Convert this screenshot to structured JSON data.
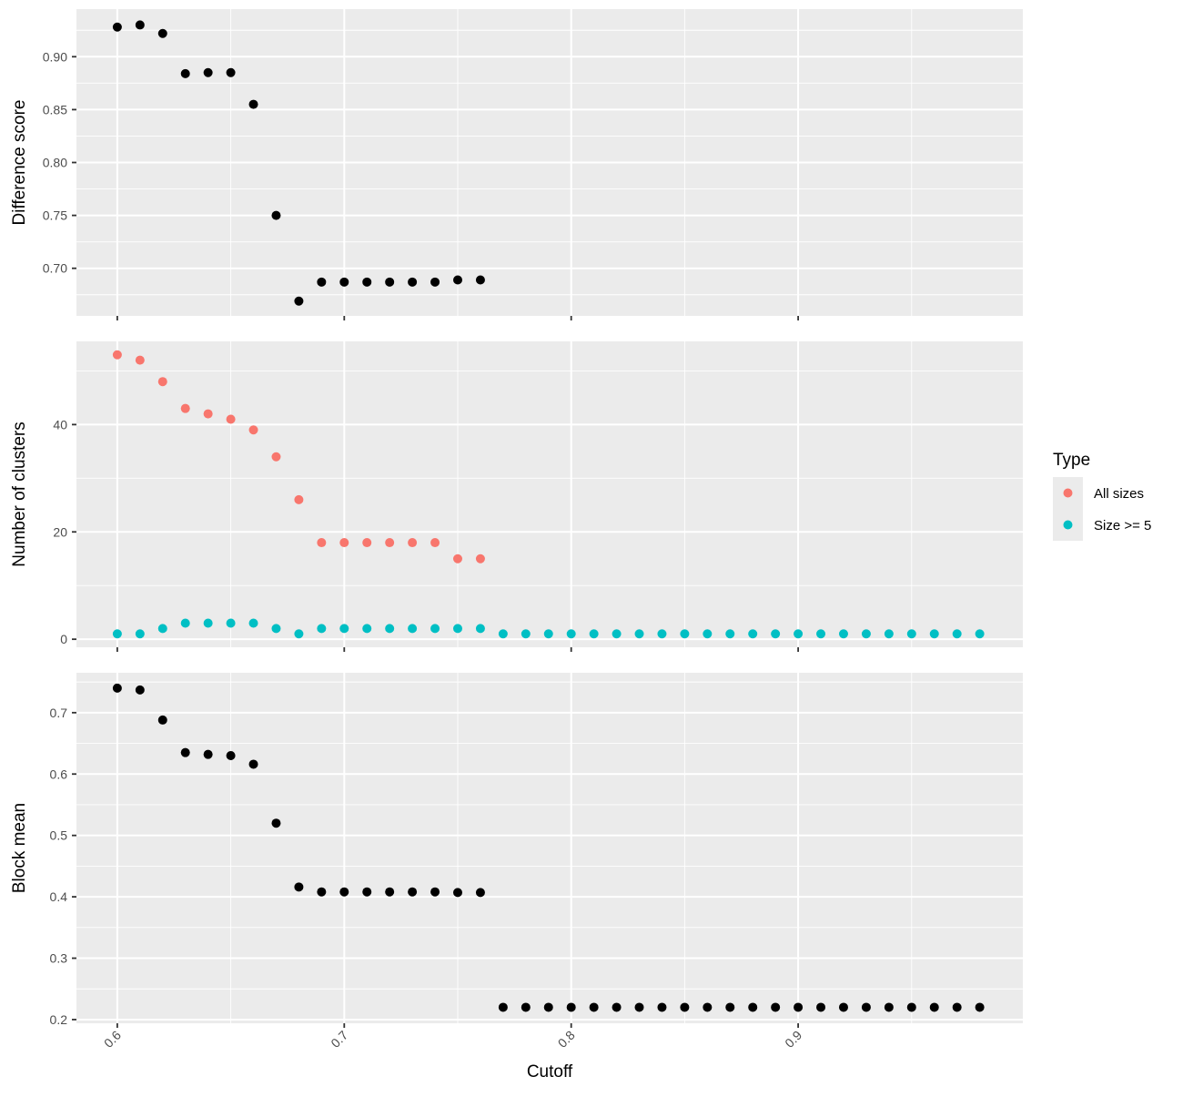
{
  "chart_data": [
    {
      "type": "scatter",
      "ylabel": "Difference score",
      "ylim": [
        0.655,
        0.945
      ],
      "yticks": [
        "0.70",
        "0.75",
        "0.80",
        "0.85",
        "0.90"
      ],
      "series": [
        {
          "color": "#000000",
          "x": [
            0.6,
            0.61,
            0.62,
            0.63,
            0.64,
            0.65,
            0.66,
            0.67,
            0.68,
            0.69,
            0.7,
            0.71,
            0.72,
            0.73,
            0.74,
            0.75,
            0.76
          ],
          "y": [
            0.928,
            0.93,
            0.922,
            0.884,
            0.885,
            0.885,
            0.855,
            0.75,
            0.669,
            0.687,
            0.687,
            0.687,
            0.687,
            0.687,
            0.687,
            0.689,
            0.689
          ]
        }
      ]
    },
    {
      "type": "scatter",
      "ylabel": "Number of clusters",
      "ylim": [
        -1.5,
        55.5
      ],
      "yticks": [
        "0",
        "20",
        "40"
      ],
      "series": [
        {
          "name": "All sizes",
          "color": "#F8766D",
          "x": [
            0.6,
            0.61,
            0.62,
            0.63,
            0.64,
            0.65,
            0.66,
            0.67,
            0.68,
            0.69,
            0.7,
            0.71,
            0.72,
            0.73,
            0.74,
            0.75,
            0.76
          ],
          "y": [
            53,
            52,
            48,
            43,
            42,
            41,
            39,
            34,
            26,
            18,
            18,
            18,
            18,
            18,
            18,
            15,
            15
          ]
        },
        {
          "name": "Size >= 5",
          "color": "#00BFC4",
          "x": [
            0.6,
            0.61,
            0.62,
            0.63,
            0.64,
            0.65,
            0.66,
            0.67,
            0.68,
            0.69,
            0.7,
            0.71,
            0.72,
            0.73,
            0.74,
            0.75,
            0.76,
            0.77,
            0.78,
            0.79,
            0.8,
            0.81,
            0.82,
            0.83,
            0.84,
            0.85,
            0.86,
            0.87,
            0.88,
            0.89,
            0.9,
            0.91,
            0.92,
            0.93,
            0.94,
            0.95,
            0.96,
            0.97,
            0.98
          ],
          "y": [
            1,
            1,
            2,
            3,
            3,
            3,
            3,
            2,
            1,
            2,
            2,
            2,
            2,
            2,
            2,
            2,
            2,
            1,
            1,
            1,
            1,
            1,
            1,
            1,
            1,
            1,
            1,
            1,
            1,
            1,
            1,
            1,
            1,
            1,
            1,
            1,
            1,
            1,
            1
          ]
        }
      ]
    },
    {
      "type": "scatter",
      "ylabel": "Block mean",
      "xlabel": "Cutoff",
      "ylim": [
        0.194,
        0.765
      ],
      "yticks": [
        "0.2",
        "0.3",
        "0.4",
        "0.5",
        "0.6",
        "0.7"
      ],
      "series": [
        {
          "color": "#000000",
          "x": [
            0.6,
            0.61,
            0.62,
            0.63,
            0.64,
            0.65,
            0.66,
            0.67,
            0.68,
            0.69,
            0.7,
            0.71,
            0.72,
            0.73,
            0.74,
            0.75,
            0.76,
            0.77,
            0.78,
            0.79,
            0.8,
            0.81,
            0.82,
            0.83,
            0.84,
            0.85,
            0.86,
            0.87,
            0.88,
            0.89,
            0.9,
            0.91,
            0.92,
            0.93,
            0.94,
            0.95,
            0.96,
            0.97,
            0.98
          ],
          "y": [
            0.74,
            0.737,
            0.688,
            0.635,
            0.632,
            0.63,
            0.616,
            0.52,
            0.416,
            0.408,
            0.408,
            0.408,
            0.408,
            0.408,
            0.408,
            0.407,
            0.407,
            0.22,
            0.22,
            0.22,
            0.22,
            0.22,
            0.22,
            0.22,
            0.22,
            0.22,
            0.22,
            0.22,
            0.22,
            0.22,
            0.22,
            0.22,
            0.22,
            0.22,
            0.22,
            0.22,
            0.22,
            0.22,
            0.22
          ]
        }
      ]
    }
  ],
  "x_axis": {
    "label": "Cutoff",
    "xlim": [
      0.582,
      0.999
    ],
    "ticks": [
      "0.6",
      "0.7",
      "0.8",
      "0.9"
    ]
  },
  "legend": {
    "title": "Type",
    "placement": "right",
    "items": [
      {
        "label": "All sizes",
        "color": "#F8766D"
      },
      {
        "label": "Size >= 5",
        "color": "#00BFC4"
      }
    ]
  },
  "colors": {
    "panel_background": "#EBEBEB",
    "grid_major": "#FFFFFF",
    "axis_text": "#4D4D4D"
  }
}
